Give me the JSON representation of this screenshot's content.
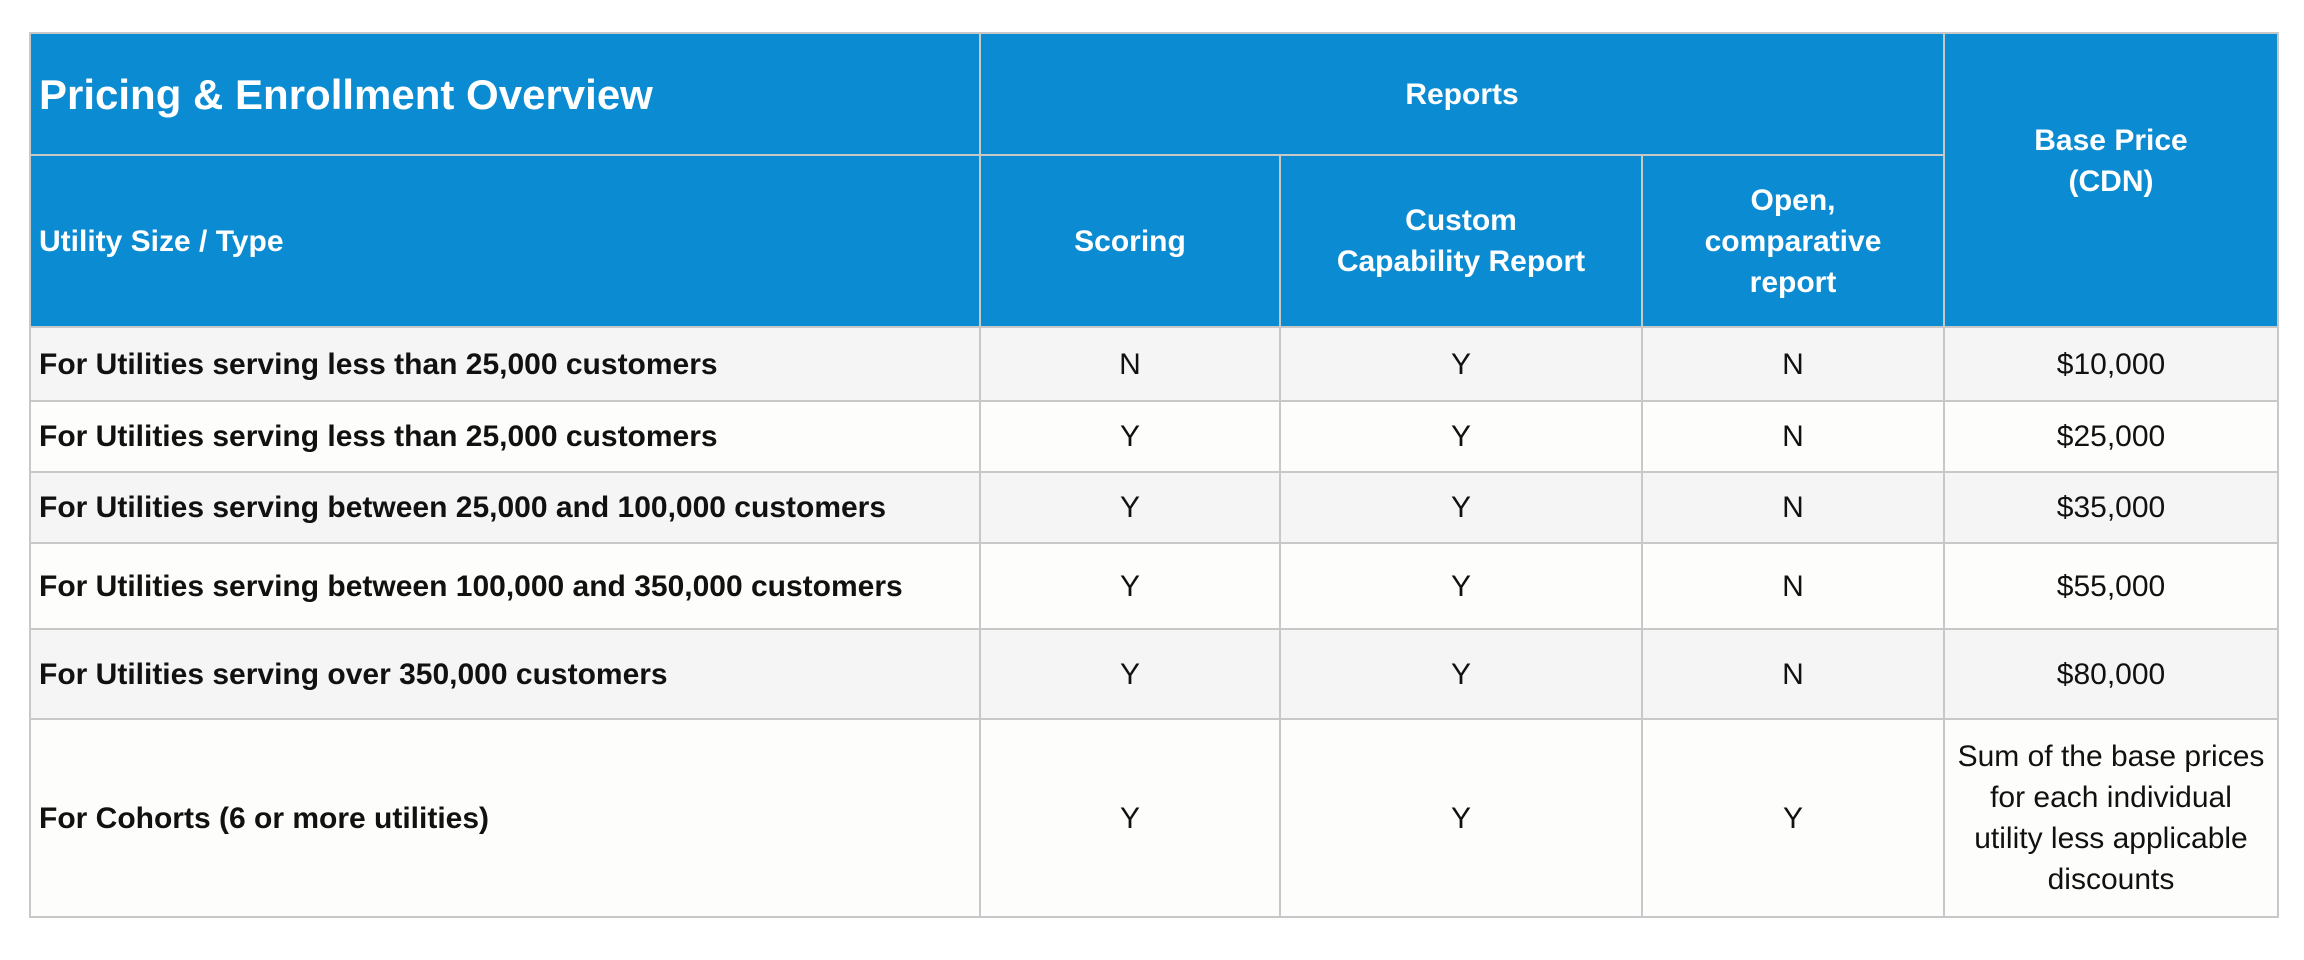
{
  "table": {
    "title": "Pricing & Enrollment Overview",
    "reports_header": "Reports",
    "base_price_header": "Base Price\n(CDN)",
    "utility_header": "Utility Size / Type",
    "columns": {
      "scoring": "Scoring",
      "custom": "Custom\nCapability Report",
      "open": "Open,\ncomparative\nreport"
    },
    "rows": [
      {
        "label": "For Utilities serving less than 25,000 customers",
        "scoring": "N",
        "custom": "Y",
        "open": "N",
        "price": "$10,000"
      },
      {
        "label": "For Utilities serving less than 25,000 customers",
        "scoring": "Y",
        "custom": "Y",
        "open": "N",
        "price": "$25,000"
      },
      {
        "label": "For Utilities serving between 25,000 and 100,000 customers",
        "scoring": "Y",
        "custom": "Y",
        "open": "N",
        "price": "$35,000"
      },
      {
        "label": "For Utilities serving between 100,000 and 350,000 customers",
        "scoring": "Y",
        "custom": "Y",
        "open": "N",
        "price": "$55,000"
      },
      {
        "label": "For Utilities serving over 350,000 customers",
        "scoring": "Y",
        "custom": "Y",
        "open": "N",
        "price": "$80,000"
      },
      {
        "label": "For Cohorts (6 or more utilities)",
        "scoring": "Y",
        "custom": "Y",
        "open": "Y",
        "price": "Sum of the base prices\nfor each individual\nutility less applicable\ndiscounts"
      }
    ]
  },
  "colors": {
    "header_bg": "#0a8bd2",
    "header_text": "#ffffff",
    "row_odd": "#f5f5f5",
    "row_even": "#fdfdfb",
    "border": "#c8c8c8"
  }
}
